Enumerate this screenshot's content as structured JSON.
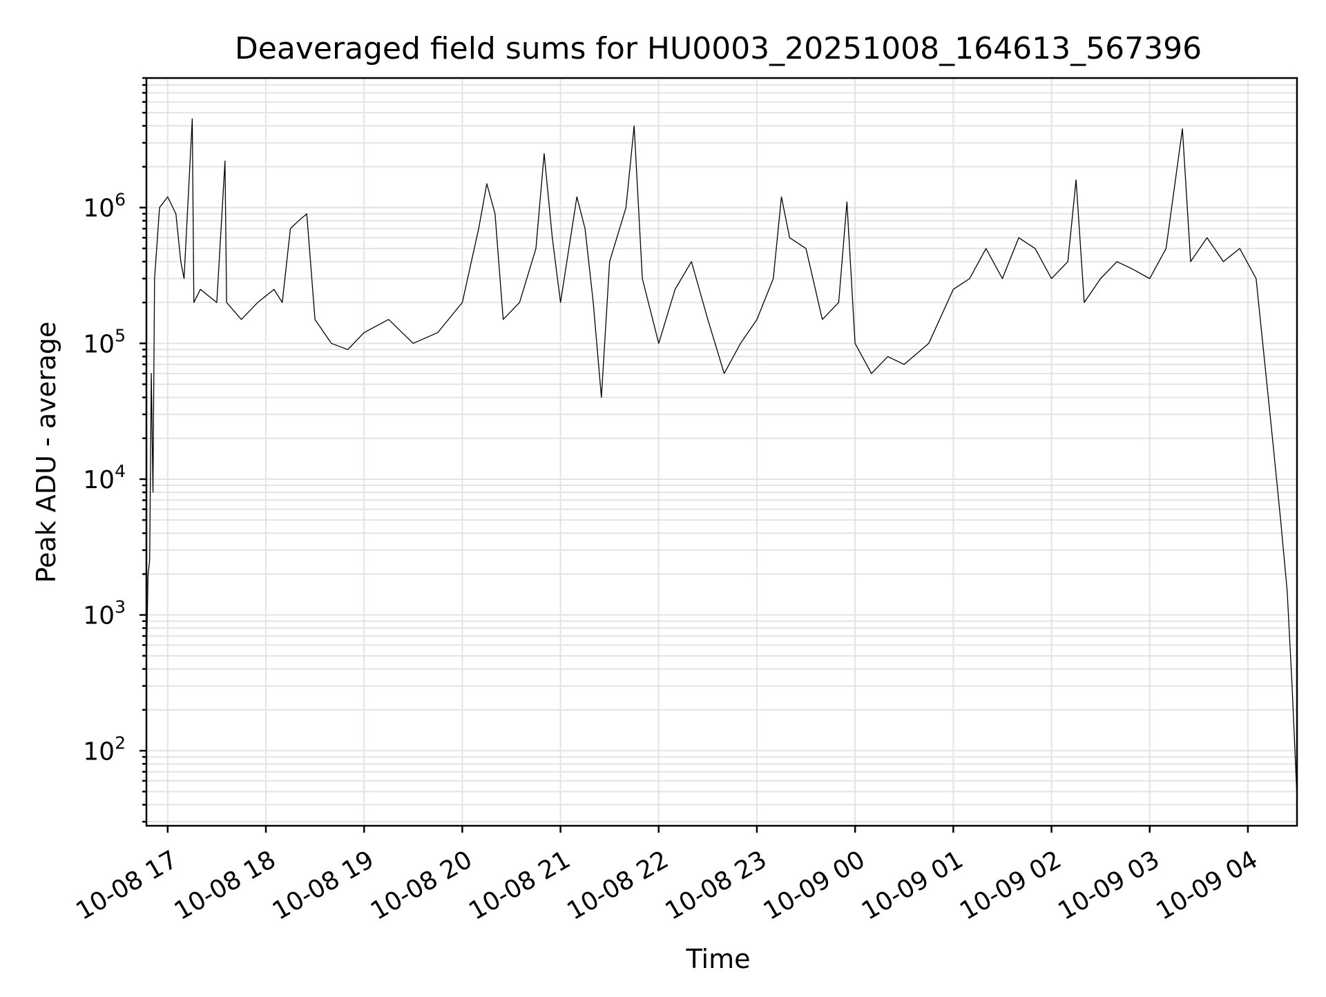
{
  "chart_data": {
    "type": "line",
    "title": "Deaveraged field sums for HU0003_20251008_164613_567396",
    "xlabel": "Time",
    "ylabel": "Peak ADU - average",
    "yscale": "log",
    "ylim": [
      28,
      9000000
    ],
    "xlim": [
      "2025-10-08 16:47",
      "2025-10-09 04:30"
    ],
    "grid": true,
    "y_ticks": [
      {
        "value": 100,
        "base": "10",
        "exp": "2"
      },
      {
        "value": 1000,
        "base": "10",
        "exp": "3"
      },
      {
        "value": 10000,
        "base": "10",
        "exp": "4"
      },
      {
        "value": 100000,
        "base": "10",
        "exp": "5"
      },
      {
        "value": 1000000,
        "base": "10",
        "exp": "6"
      }
    ],
    "x_ticks": [
      {
        "value": "2025-10-08 17:00",
        "label": "10-08 17"
      },
      {
        "value": "2025-10-08 18:00",
        "label": "10-08 18"
      },
      {
        "value": "2025-10-08 19:00",
        "label": "10-08 19"
      },
      {
        "value": "2025-10-08 20:00",
        "label": "10-08 20"
      },
      {
        "value": "2025-10-08 21:00",
        "label": "10-08 21"
      },
      {
        "value": "2025-10-08 22:00",
        "label": "10-08 22"
      },
      {
        "value": "2025-10-08 23:00",
        "label": "10-08 23"
      },
      {
        "value": "2025-10-09 00:00",
        "label": "10-09 00"
      },
      {
        "value": "2025-10-09 01:00",
        "label": "10-09 01"
      },
      {
        "value": "2025-10-09 02:00",
        "label": "10-09 02"
      },
      {
        "value": "2025-10-09 03:00",
        "label": "10-09 03"
      },
      {
        "value": "2025-10-09 04:00",
        "label": "10-09 04"
      }
    ],
    "series": [
      {
        "color": "#000000",
        "points": [
          [
            "2025-10-08 16:47",
            420
          ],
          [
            "2025-10-08 16:48",
            2000
          ],
          [
            "2025-10-08 16:49",
            2500
          ],
          [
            "2025-10-08 16:50",
            60000
          ],
          [
            "2025-10-08 16:51",
            8000
          ],
          [
            "2025-10-08 16:52",
            300000
          ],
          [
            "2025-10-08 16:55",
            1000000
          ],
          [
            "2025-10-08 17:00",
            1200000
          ],
          [
            "2025-10-08 17:05",
            900000
          ],
          [
            "2025-10-08 17:08",
            400000
          ],
          [
            "2025-10-08 17:10",
            300000
          ],
          [
            "2025-10-08 17:15",
            4500000
          ],
          [
            "2025-10-08 17:16",
            200000
          ],
          [
            "2025-10-08 17:20",
            250000
          ],
          [
            "2025-10-08 17:30",
            200000
          ],
          [
            "2025-10-08 17:35",
            2200000
          ],
          [
            "2025-10-08 17:36",
            200000
          ],
          [
            "2025-10-08 17:45",
            150000
          ],
          [
            "2025-10-08 17:55",
            200000
          ],
          [
            "2025-10-08 18:05",
            250000
          ],
          [
            "2025-10-08 18:10",
            200000
          ],
          [
            "2025-10-08 18:15",
            700000
          ],
          [
            "2025-10-08 18:20",
            800000
          ],
          [
            "2025-10-08 18:25",
            900000
          ],
          [
            "2025-10-08 18:30",
            150000
          ],
          [
            "2025-10-08 18:40",
            100000
          ],
          [
            "2025-10-08 18:50",
            90000
          ],
          [
            "2025-10-08 19:00",
            120000
          ],
          [
            "2025-10-08 19:15",
            150000
          ],
          [
            "2025-10-08 19:30",
            100000
          ],
          [
            "2025-10-08 19:45",
            120000
          ],
          [
            "2025-10-08 20:00",
            200000
          ],
          [
            "2025-10-08 20:10",
            700000
          ],
          [
            "2025-10-08 20:15",
            1500000
          ],
          [
            "2025-10-08 20:20",
            900000
          ],
          [
            "2025-10-08 20:25",
            150000
          ],
          [
            "2025-10-08 20:35",
            200000
          ],
          [
            "2025-10-08 20:45",
            500000
          ],
          [
            "2025-10-08 20:50",
            2500000
          ],
          [
            "2025-10-08 20:55",
            600000
          ],
          [
            "2025-10-08 21:00",
            200000
          ],
          [
            "2025-10-08 21:10",
            1200000
          ],
          [
            "2025-10-08 21:15",
            700000
          ],
          [
            "2025-10-08 21:20",
            200000
          ],
          [
            "2025-10-08 21:25",
            40000
          ],
          [
            "2025-10-08 21:30",
            400000
          ],
          [
            "2025-10-08 21:40",
            1000000
          ],
          [
            "2025-10-08 21:45",
            4000000
          ],
          [
            "2025-10-08 21:50",
            300000
          ],
          [
            "2025-10-08 22:00",
            100000
          ],
          [
            "2025-10-08 22:10",
            250000
          ],
          [
            "2025-10-08 22:20",
            400000
          ],
          [
            "2025-10-08 22:30",
            150000
          ],
          [
            "2025-10-08 22:40",
            60000
          ],
          [
            "2025-10-08 22:50",
            100000
          ],
          [
            "2025-10-08 23:00",
            150000
          ],
          [
            "2025-10-08 23:10",
            300000
          ],
          [
            "2025-10-08 23:15",
            1200000
          ],
          [
            "2025-10-08 23:20",
            600000
          ],
          [
            "2025-10-08 23:30",
            500000
          ],
          [
            "2025-10-08 23:40",
            150000
          ],
          [
            "2025-10-08 23:50",
            200000
          ],
          [
            "2025-10-08 23:55",
            1100000
          ],
          [
            "2025-10-09 00:00",
            100000
          ],
          [
            "2025-10-09 00:10",
            60000
          ],
          [
            "2025-10-09 00:20",
            80000
          ],
          [
            "2025-10-09 00:30",
            70000
          ],
          [
            "2025-10-09 00:45",
            100000
          ],
          [
            "2025-10-09 01:00",
            250000
          ],
          [
            "2025-10-09 01:10",
            300000
          ],
          [
            "2025-10-09 01:20",
            500000
          ],
          [
            "2025-10-09 01:30",
            300000
          ],
          [
            "2025-10-09 01:40",
            600000
          ],
          [
            "2025-10-09 01:50",
            500000
          ],
          [
            "2025-10-09 02:00",
            300000
          ],
          [
            "2025-10-09 02:10",
            400000
          ],
          [
            "2025-10-09 02:15",
            1600000
          ],
          [
            "2025-10-09 02:20",
            200000
          ],
          [
            "2025-10-09 02:30",
            300000
          ],
          [
            "2025-10-09 02:40",
            400000
          ],
          [
            "2025-10-09 02:50",
            350000
          ],
          [
            "2025-10-09 03:00",
            300000
          ],
          [
            "2025-10-09 03:10",
            500000
          ],
          [
            "2025-10-09 03:20",
            3800000
          ],
          [
            "2025-10-09 03:25",
            400000
          ],
          [
            "2025-10-09 03:35",
            600000
          ],
          [
            "2025-10-09 03:45",
            400000
          ],
          [
            "2025-10-09 03:55",
            500000
          ],
          [
            "2025-10-09 04:05",
            300000
          ],
          [
            "2025-10-09 04:15",
            20000
          ],
          [
            "2025-10-09 04:20",
            5000
          ],
          [
            "2025-10-09 04:24",
            1500
          ],
          [
            "2025-10-09 04:27",
            300
          ],
          [
            "2025-10-09 04:30",
            45
          ]
        ]
      }
    ]
  }
}
